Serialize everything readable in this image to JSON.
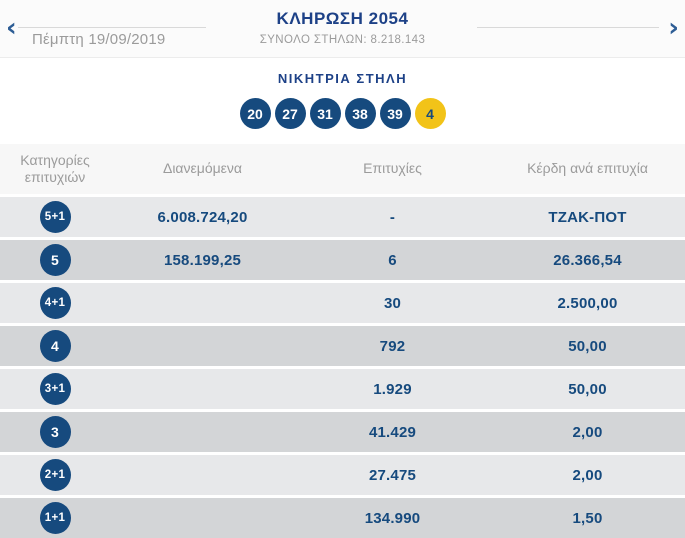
{
  "header": {
    "prev_icon": "‹",
    "next_icon": "›",
    "date": "Πέμπτη 19/09/2019",
    "title": "ΚΛΗΡΩΣΗ 2054",
    "subtitle": "ΣΥΝΟΛΟ ΣΤΗΛΩΝ: 8.218.143"
  },
  "winning_column": {
    "label": "ΝΙΚΗΤΡΙΑ ΣΤΗΛΗ",
    "numbers": [
      "20",
      "27",
      "31",
      "38",
      "39"
    ],
    "joker": "4"
  },
  "results_table": {
    "headers": [
      "Κατηγορίες επιτυχιών",
      "Διανεμόμενα",
      "Επιτυχίες",
      "Κέρδη ανά επιτυχία"
    ],
    "rows": [
      {
        "category": "5+1",
        "distributed": "6.008.724,20",
        "wins": "-",
        "prize_per_win": "ΤΖΑΚ-ΠΟΤ"
      },
      {
        "category": "5",
        "distributed": "158.199,25",
        "wins": "6",
        "prize_per_win": "26.366,54"
      },
      {
        "category": "4+1",
        "distributed": "",
        "wins": "30",
        "prize_per_win": "2.500,00"
      },
      {
        "category": "4",
        "distributed": "",
        "wins": "792",
        "prize_per_win": "50,00"
      },
      {
        "category": "3+1",
        "distributed": "",
        "wins": "1.929",
        "prize_per_win": "50,00"
      },
      {
        "category": "3",
        "distributed": "",
        "wins": "41.429",
        "prize_per_win": "2,00"
      },
      {
        "category": "2+1",
        "distributed": "",
        "wins": "27.475",
        "prize_per_win": "2,00"
      },
      {
        "category": "1+1",
        "distributed": "",
        "wins": "134.990",
        "prize_per_win": "1,50"
      }
    ]
  },
  "colors": {
    "navy": "#164a7e",
    "title_navy": "#1d4187",
    "joker_yellow": "#f2c318",
    "gray_text": "#9b9b9b",
    "row_light": "#e7e8ea",
    "row_dark": "#d3d5d7"
  }
}
